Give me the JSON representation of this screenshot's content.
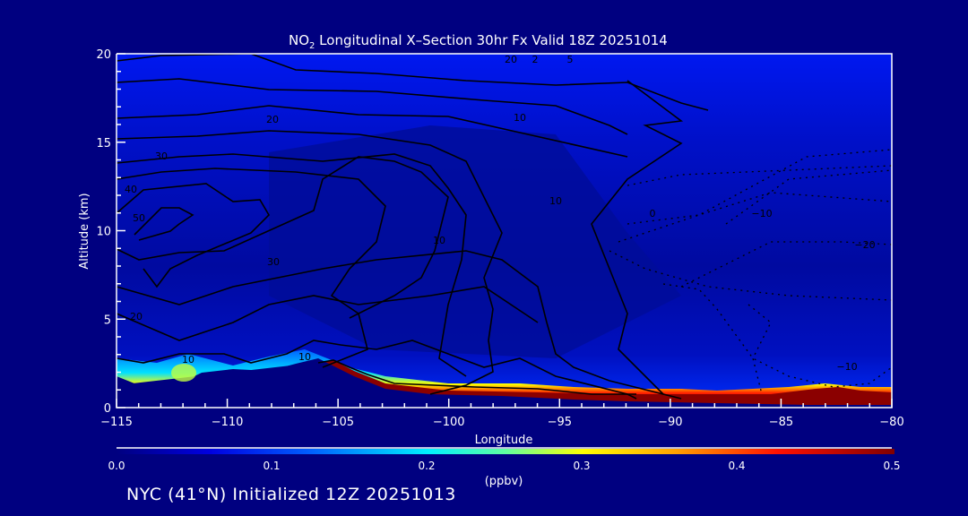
{
  "chart_data": {
    "type": "heatmap",
    "title": "NO",
    "title_sub": "2",
    "title_rest": " Longitudinal X–Section 30hr  Fx Valid 18Z 20251014",
    "xlabel": "Longitude",
    "ylabel": "Altitude (km)",
    "xlim": [
      -115,
      -80
    ],
    "ylim": [
      0,
      20
    ],
    "x_ticks": [
      -115,
      -110,
      -105,
      -100,
      -95,
      -90,
      -85,
      -80
    ],
    "x_tick_labels": [
      "−115",
      "−110",
      "−105",
      "−100",
      "−95",
      "−90",
      "−85",
      "−80"
    ],
    "y_ticks": [
      0,
      5,
      10,
      15,
      20
    ],
    "y_tick_labels": [
      "0",
      "5",
      "10",
      "15",
      "20"
    ],
    "colorbar": {
      "range": [
        0.0,
        0.5
      ],
      "ticks": [
        "0.0",
        "0.1",
        "0.2",
        "0.3",
        "0.4",
        "0.5"
      ],
      "units": "(ppbv)",
      "colors": [
        "#000080",
        "#0000ff",
        "#0080ff",
        "#00ffff",
        "#80ff80",
        "#ffff00",
        "#ff8000",
        "#ff0000",
        "#800000"
      ]
    },
    "contour_labels": [
      "20",
      "30",
      "40",
      "50",
      "30",
      "20",
      "20",
      "10",
      "10",
      "10",
      "10",
      "10",
      "0",
      "−10",
      "−20",
      "−10",
      "2",
      "5"
    ],
    "grid": false
  },
  "footer": "NYC (41°N) Initialized 12Z 20251013"
}
